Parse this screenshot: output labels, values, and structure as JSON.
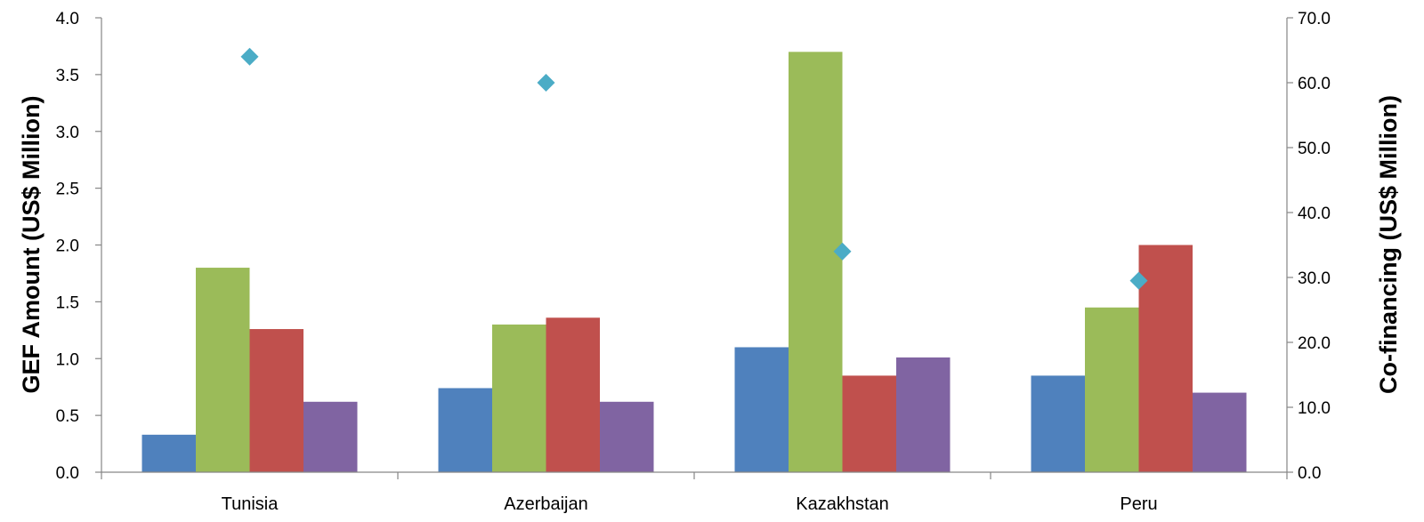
{
  "chart_data": {
    "type": "bar",
    "categories": [
      "Tunisia",
      "Azerbaijan",
      "Kazakhstan",
      "Peru"
    ],
    "series": [
      {
        "values": [
          0.33,
          0.74,
          1.1,
          0.85
        ],
        "color": "#4F81BD",
        "axis": "left"
      },
      {
        "values": [
          1.8,
          1.3,
          3.7,
          1.45
        ],
        "color": "#9BBB59",
        "axis": "left"
      },
      {
        "values": [
          1.26,
          1.36,
          0.85,
          2.0
        ],
        "color": "#C0504D",
        "axis": "left"
      },
      {
        "values": [
          0.62,
          0.62,
          1.01,
          0.7
        ],
        "color": "#8064A2",
        "axis": "left"
      },
      {
        "type": "scatter",
        "marker": "diamond",
        "values": [
          64.0,
          60.0,
          34.0,
          29.5
        ],
        "color": "#4BACC6",
        "axis": "right"
      }
    ],
    "ylabel": "GEF Amount (US$ Million)",
    "y2label": "Co-financing (US$ Million)",
    "ylim": [
      0,
      4.0
    ],
    "y2lim": [
      0,
      70.0
    ],
    "yticks": [
      "0.0",
      "0.5",
      "1.0",
      "1.5",
      "2.0",
      "2.5",
      "3.0",
      "3.5",
      "4.0"
    ],
    "y2ticks": [
      "0.0",
      "10.0",
      "20.0",
      "30.0",
      "40.0",
      "50.0",
      "60.0",
      "70.0"
    ],
    "grid": false,
    "legend": "none"
  }
}
